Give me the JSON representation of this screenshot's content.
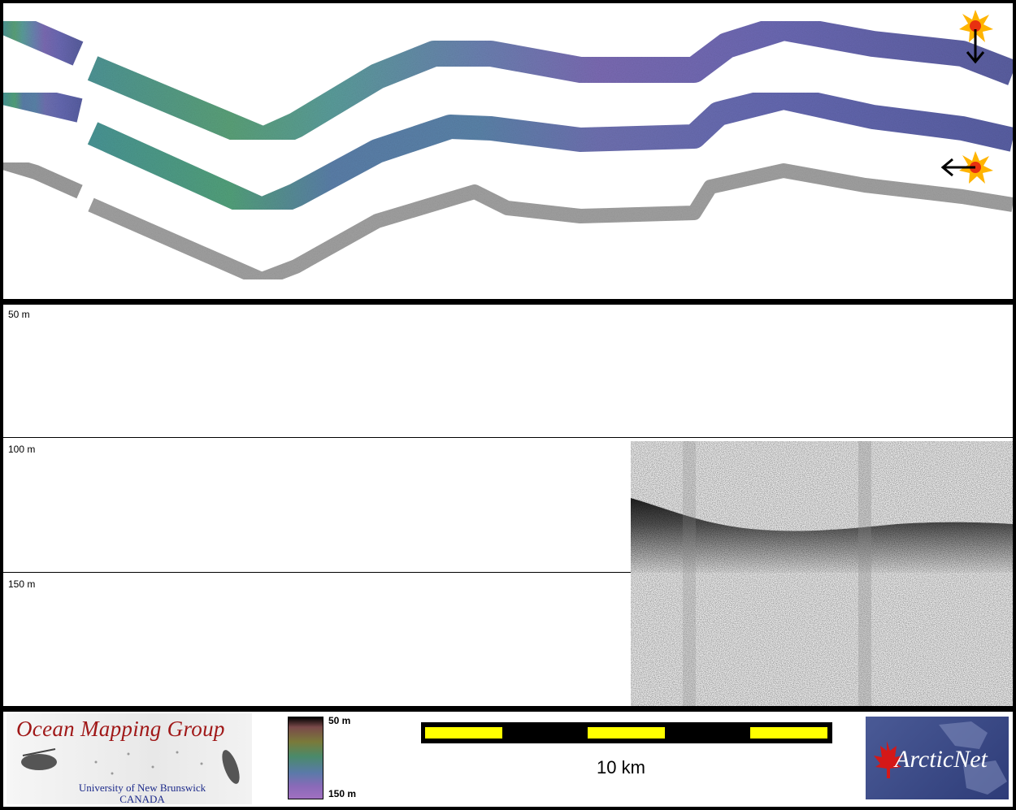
{
  "profile": {
    "depth_labels": [
      "50 m",
      "100 m",
      "150 m"
    ]
  },
  "footer": {
    "logo_left": {
      "title": "Ocean Mapping Group",
      "subtitle_line1": "University of New Brunswick",
      "subtitle_line2": "CANADA"
    },
    "colorbar": {
      "top_label": "50 m",
      "bottom_label": "150 m"
    },
    "scalebar": {
      "label": "10 km",
      "segment_color": "#ffff00",
      "bar_color": "#000000"
    },
    "logo_right": {
      "text": "ArcticNet"
    }
  },
  "colors": {
    "bathy_shallow": "#5c9a6a",
    "bathy_mid": "#5a8aa0",
    "bathy_deep": "#6060a8",
    "backscatter": "#9a9a9a",
    "sun_icon": "#ffb400",
    "omg_title": "#a01818",
    "arcticnet_bg": "#3a4a86"
  },
  "icons": [
    "sun-icon",
    "arrow-down-icon",
    "arrow-left-icon",
    "maple-leaf-icon",
    "fish-icon"
  ]
}
